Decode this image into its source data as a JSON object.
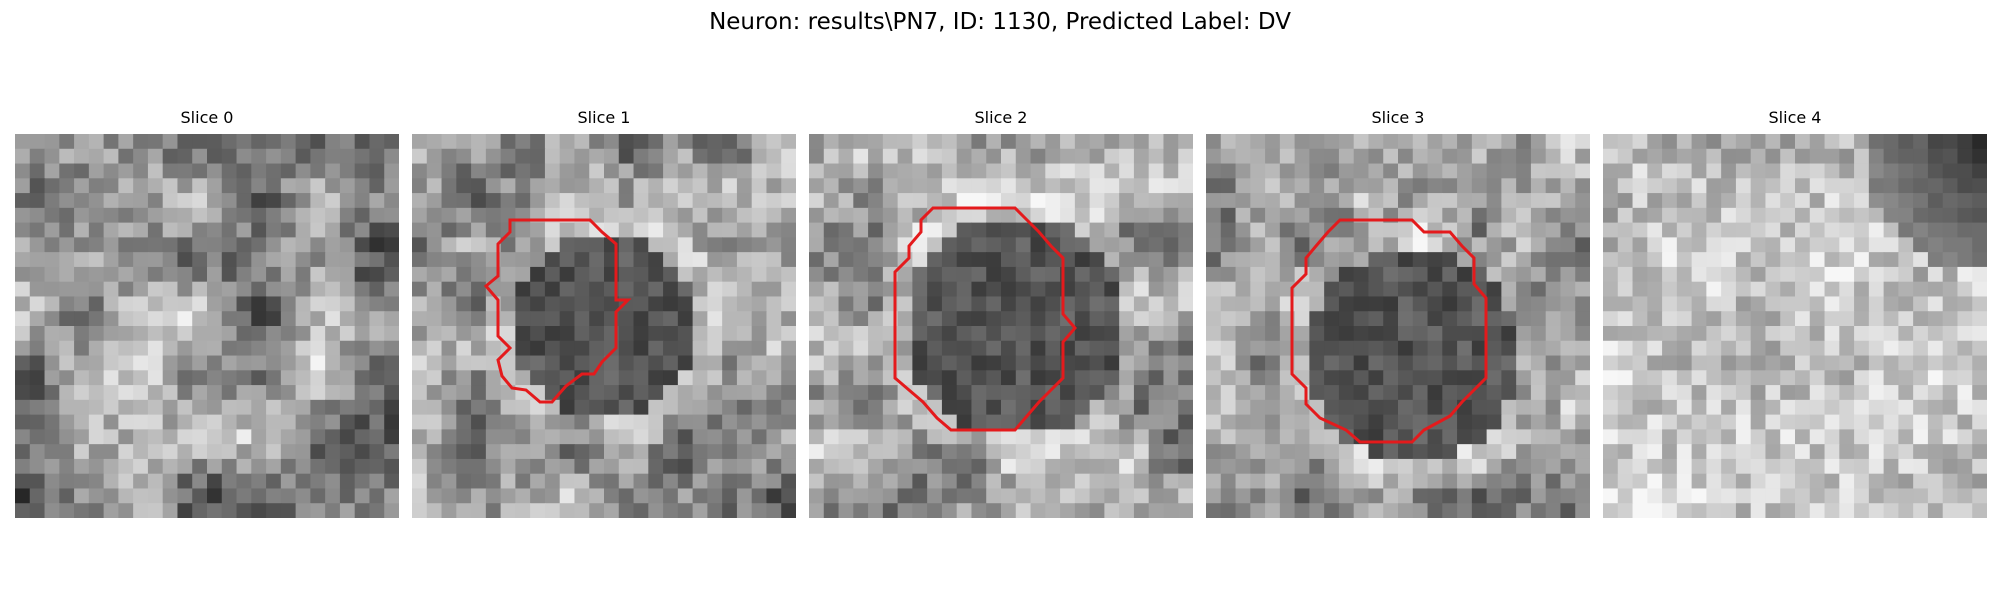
{
  "figure": {
    "title": "Neuron: results\\PN7, ID: 1130, Predicted Label: DV"
  },
  "panels": [
    {
      "title": "Slice 0",
      "has_contour": false
    },
    {
      "title": "Slice 1",
      "has_contour": true
    },
    {
      "title": "Slice 2",
      "has_contour": true
    },
    {
      "title": "Slice 3",
      "has_contour": true
    },
    {
      "title": "Slice 4",
      "has_contour": false
    }
  ],
  "colors": {
    "contour": "#e41a1c",
    "background": "#ffffff"
  }
}
